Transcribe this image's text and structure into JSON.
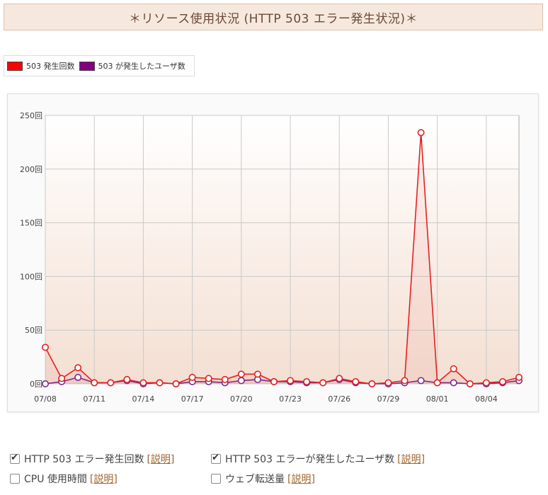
{
  "page_title": "＊リソース使用状況 (HTTP 503 エラー発生状況)＊",
  "legend": [
    {
      "label": "503 発生回数",
      "color": "#ff0000"
    },
    {
      "label": "503 が発生したユーザ数",
      "color": "#800080"
    }
  ],
  "chart_data": {
    "type": "line",
    "x": [
      "07/08",
      "07/09",
      "07/10",
      "07/11",
      "07/12",
      "07/13",
      "07/14",
      "07/15",
      "07/16",
      "07/17",
      "07/18",
      "07/19",
      "07/20",
      "07/21",
      "07/22",
      "07/23",
      "07/24",
      "07/25",
      "07/26",
      "07/27",
      "07/28",
      "07/29",
      "07/30",
      "07/31",
      "08/01",
      "08/02",
      "08/03",
      "08/04",
      "08/05",
      "08/06"
    ],
    "x_tick_labels": [
      "07/08",
      "07/11",
      "07/14",
      "07/17",
      "07/20",
      "07/23",
      "07/26",
      "07/29",
      "08/01",
      "08/04"
    ],
    "y_tick_labels": [
      "0回",
      "50回",
      "100回",
      "150回",
      "200回",
      "250回"
    ],
    "ylim": [
      0,
      250
    ],
    "grid": true,
    "legend_position": "top-left",
    "series": [
      {
        "name": "503 発生回数",
        "color": "#e32222",
        "values": [
          34,
          5,
          15,
          1,
          1,
          4,
          1,
          1,
          0,
          6,
          5,
          4,
          9,
          9,
          2,
          3,
          2,
          1,
          5,
          2,
          0,
          1,
          3,
          234,
          1,
          14,
          0,
          1,
          2,
          6
        ]
      },
      {
        "name": "503 が発生したユーザ数",
        "color": "#7a2a8a",
        "values": [
          0,
          2,
          6,
          1,
          1,
          3,
          0,
          1,
          0,
          2,
          2,
          1,
          3,
          4,
          2,
          2,
          1,
          1,
          4,
          1,
          0,
          0,
          1,
          3,
          1,
          1,
          0,
          0,
          1,
          3
        ]
      }
    ]
  },
  "options": [
    {
      "label": "HTTP 503 エラー発生回数",
      "link": "[説明]",
      "checked": true
    },
    {
      "label": "HTTP 503 エラーが発生したユーザ数",
      "link": "[説明]",
      "checked": true
    },
    {
      "label": "CPU 使用時間",
      "link": "[説明]",
      "checked": false
    },
    {
      "label": "ウェブ転送量",
      "link": "[説明]",
      "checked": false
    }
  ]
}
